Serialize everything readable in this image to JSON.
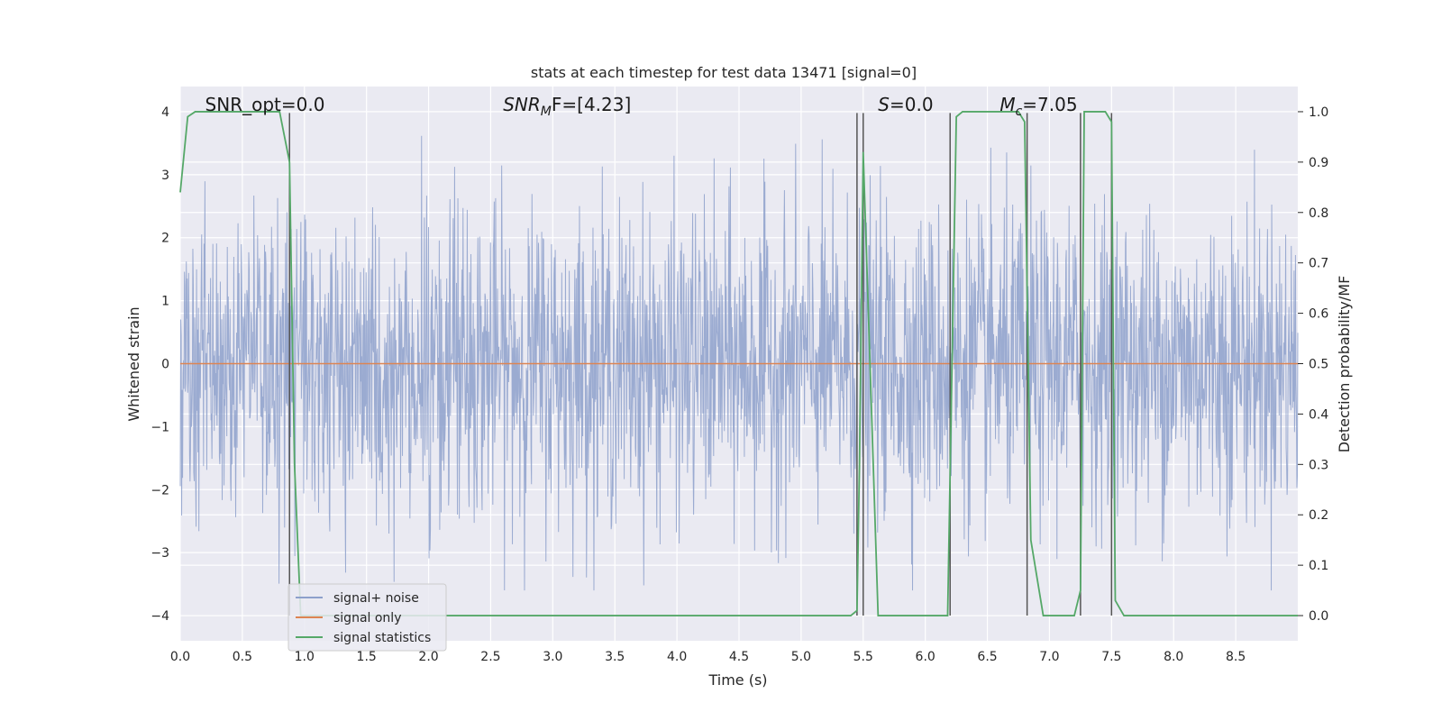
{
  "chart_data": {
    "type": "line",
    "title": "stats at each timestep for test data 13471 [signal=0]",
    "xlabel": "Time (s)",
    "ylabel": "Whitened strain",
    "y2label": "Detection probability/MF",
    "xlim": [
      0.0,
      9.0
    ],
    "ylim": [
      -4.4,
      4.4
    ],
    "y2lim": [
      -0.05,
      1.05
    ],
    "xticks": [
      0.0,
      0.5,
      1.0,
      1.5,
      2.0,
      2.5,
      3.0,
      3.5,
      4.0,
      4.5,
      5.0,
      5.5,
      6.0,
      6.5,
      7.0,
      7.5,
      8.0,
      8.5
    ],
    "xtick_labels": [
      "0.0",
      "0.5",
      "1.0",
      "1.5",
      "2.0",
      "2.5",
      "3.0",
      "3.5",
      "4.0",
      "4.5",
      "5.0",
      "5.5",
      "6.0",
      "6.5",
      "7.0",
      "7.5",
      "8.0",
      "8.5"
    ],
    "yticks": [
      4,
      3,
      2,
      1,
      0,
      -1,
      -2,
      -3,
      -4
    ],
    "ytick_labels": [
      "4",
      "3",
      "2",
      "1",
      "0",
      "−1",
      "−2",
      "−3",
      "−4"
    ],
    "y2ticks": [
      1.0,
      0.9,
      0.8,
      0.7,
      0.6,
      0.5,
      0.4,
      0.3,
      0.2,
      0.1,
      0.0
    ],
    "y2tick_labels": [
      "1.0",
      "0.9",
      "0.8",
      "0.7",
      "0.6",
      "0.5",
      "0.4",
      "0.3",
      "0.2",
      "0.1",
      "0.0"
    ],
    "grid": true,
    "legend_position": "lower-left",
    "colors": {
      "noise": "#8da0cb",
      "signal_only": "#dd8452",
      "statistics": "#55a868",
      "markers": "#555555",
      "axes_bg": "#eaeaf2",
      "grid": "#ffffff"
    },
    "series": [
      {
        "name": "signal+ noise",
        "axis": "left",
        "kind": "noise",
        "x_range": [
          0.0,
          9.0
        ],
        "envelope": [
          -3.6,
          3.95
        ]
      },
      {
        "name": "signal only",
        "axis": "left",
        "x": [
          0.0,
          9.0
        ],
        "y": [
          0.0,
          0.0
        ]
      },
      {
        "name": "signal statistics",
        "axis": "right",
        "x": [
          0.0,
          0.06,
          0.12,
          0.8,
          0.88,
          0.92,
          0.97,
          1.0,
          5.4,
          5.45,
          5.47,
          5.5,
          5.62,
          6.18,
          6.25,
          6.3,
          6.75,
          6.8,
          6.85,
          6.95,
          7.2,
          7.25,
          7.28,
          7.45,
          7.5,
          7.53,
          7.6,
          9.0
        ],
        "y": [
          0.84,
          0.99,
          1.0,
          1.0,
          0.9,
          0.3,
          0.0,
          0.0,
          0.0,
          0.01,
          0.3,
          0.92,
          0.0,
          0.0,
          0.99,
          1.0,
          1.0,
          0.98,
          0.15,
          0.0,
          0.0,
          0.05,
          1.0,
          1.0,
          0.98,
          0.03,
          0.0,
          0.0
        ]
      }
    ],
    "vlines": [
      0.88,
      5.45,
      5.5,
      6.2,
      6.82,
      7.25,
      7.5
    ],
    "annotations": [
      {
        "id": "snr-opt",
        "text": "SNR_opt=0.0",
        "x": 0.2,
        "y": 4.1
      },
      {
        "id": "snr-mf",
        "text": "SNR",
        "sub": "M",
        "rest": "F=[4.23]",
        "x": 2.6,
        "y": 4.1
      },
      {
        "id": "stat-s",
        "text": "S",
        "rest": "=0.0",
        "x": 5.62,
        "y": 4.1
      },
      {
        "id": "mc",
        "text": "M",
        "sub": "c",
        "rest": "=7.05",
        "x": 6.6,
        "y": 4.1
      }
    ]
  }
}
